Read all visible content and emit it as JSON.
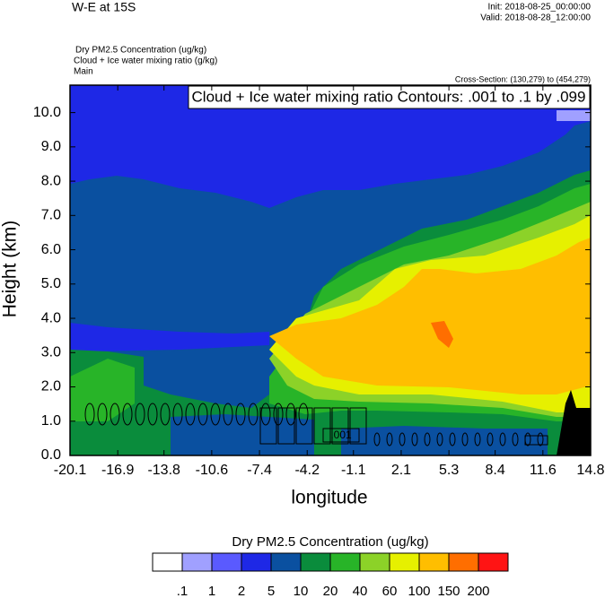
{
  "chart_data": {
    "type": "contour",
    "title": "W-E at 15S",
    "init": "Init: 2018-08-25_00:00:00",
    "valid": "Valid: 2018-08-28_12:00:00",
    "subtitles": [
      "Dry PM2.5 Concentration   (ug/kg)",
      "Cloud + Ice water mixing ratio   (g/kg)",
      "Main"
    ],
    "cross_section": "Cross-Section: (130,279) to (454,279)",
    "contour_note": "Cloud + Ice water mixing ratio Contours: .001 to .1 by .099",
    "contour_label": ".001",
    "x_label": "longitude",
    "y_label": "Height (km)",
    "xlim": [
      -20.1,
      14.8
    ],
    "xticks": [
      -20.1,
      -16.9,
      -13.8,
      -10.6,
      -7.4,
      -4.2,
      -1.1,
      2.1,
      5.3,
      8.4,
      11.6,
      14.8
    ],
    "ylim": [
      0,
      10.8
    ],
    "yticks": [
      {
        "value": 0,
        "label": "0.0"
      },
      {
        "value": 1,
        "label": "1.0"
      },
      {
        "value": 2,
        "label": "2.0"
      },
      {
        "value": 3,
        "label": "3.0"
      },
      {
        "value": 4,
        "label": "4.0"
      },
      {
        "value": 5,
        "label": "5.0"
      },
      {
        "value": 6,
        "label": "6.0"
      },
      {
        "value": 7,
        "label": "7.0"
      },
      {
        "value": 8,
        "label": "8.0"
      },
      {
        "value": 9,
        "label": "9.0"
      },
      {
        "value": 10,
        "label": "10.0"
      }
    ],
    "colorbar": {
      "title": "Dry PM2.5 Concentration  (ug/kg)",
      "levels": [
        {
          "value": 0.1,
          "label": ".1"
        },
        1,
        2,
        5,
        10,
        20,
        40,
        60,
        100,
        150,
        200
      ],
      "colors": [
        "#ffffff",
        "#a0a0ff",
        "#5a5aff",
        "#1e28e6",
        "#0a50a0",
        "#0a8c3c",
        "#28b428",
        "#8cd228",
        "#e6f000",
        "#ffbe00",
        "#ff6e00",
        "#ff1414"
      ]
    }
  }
}
